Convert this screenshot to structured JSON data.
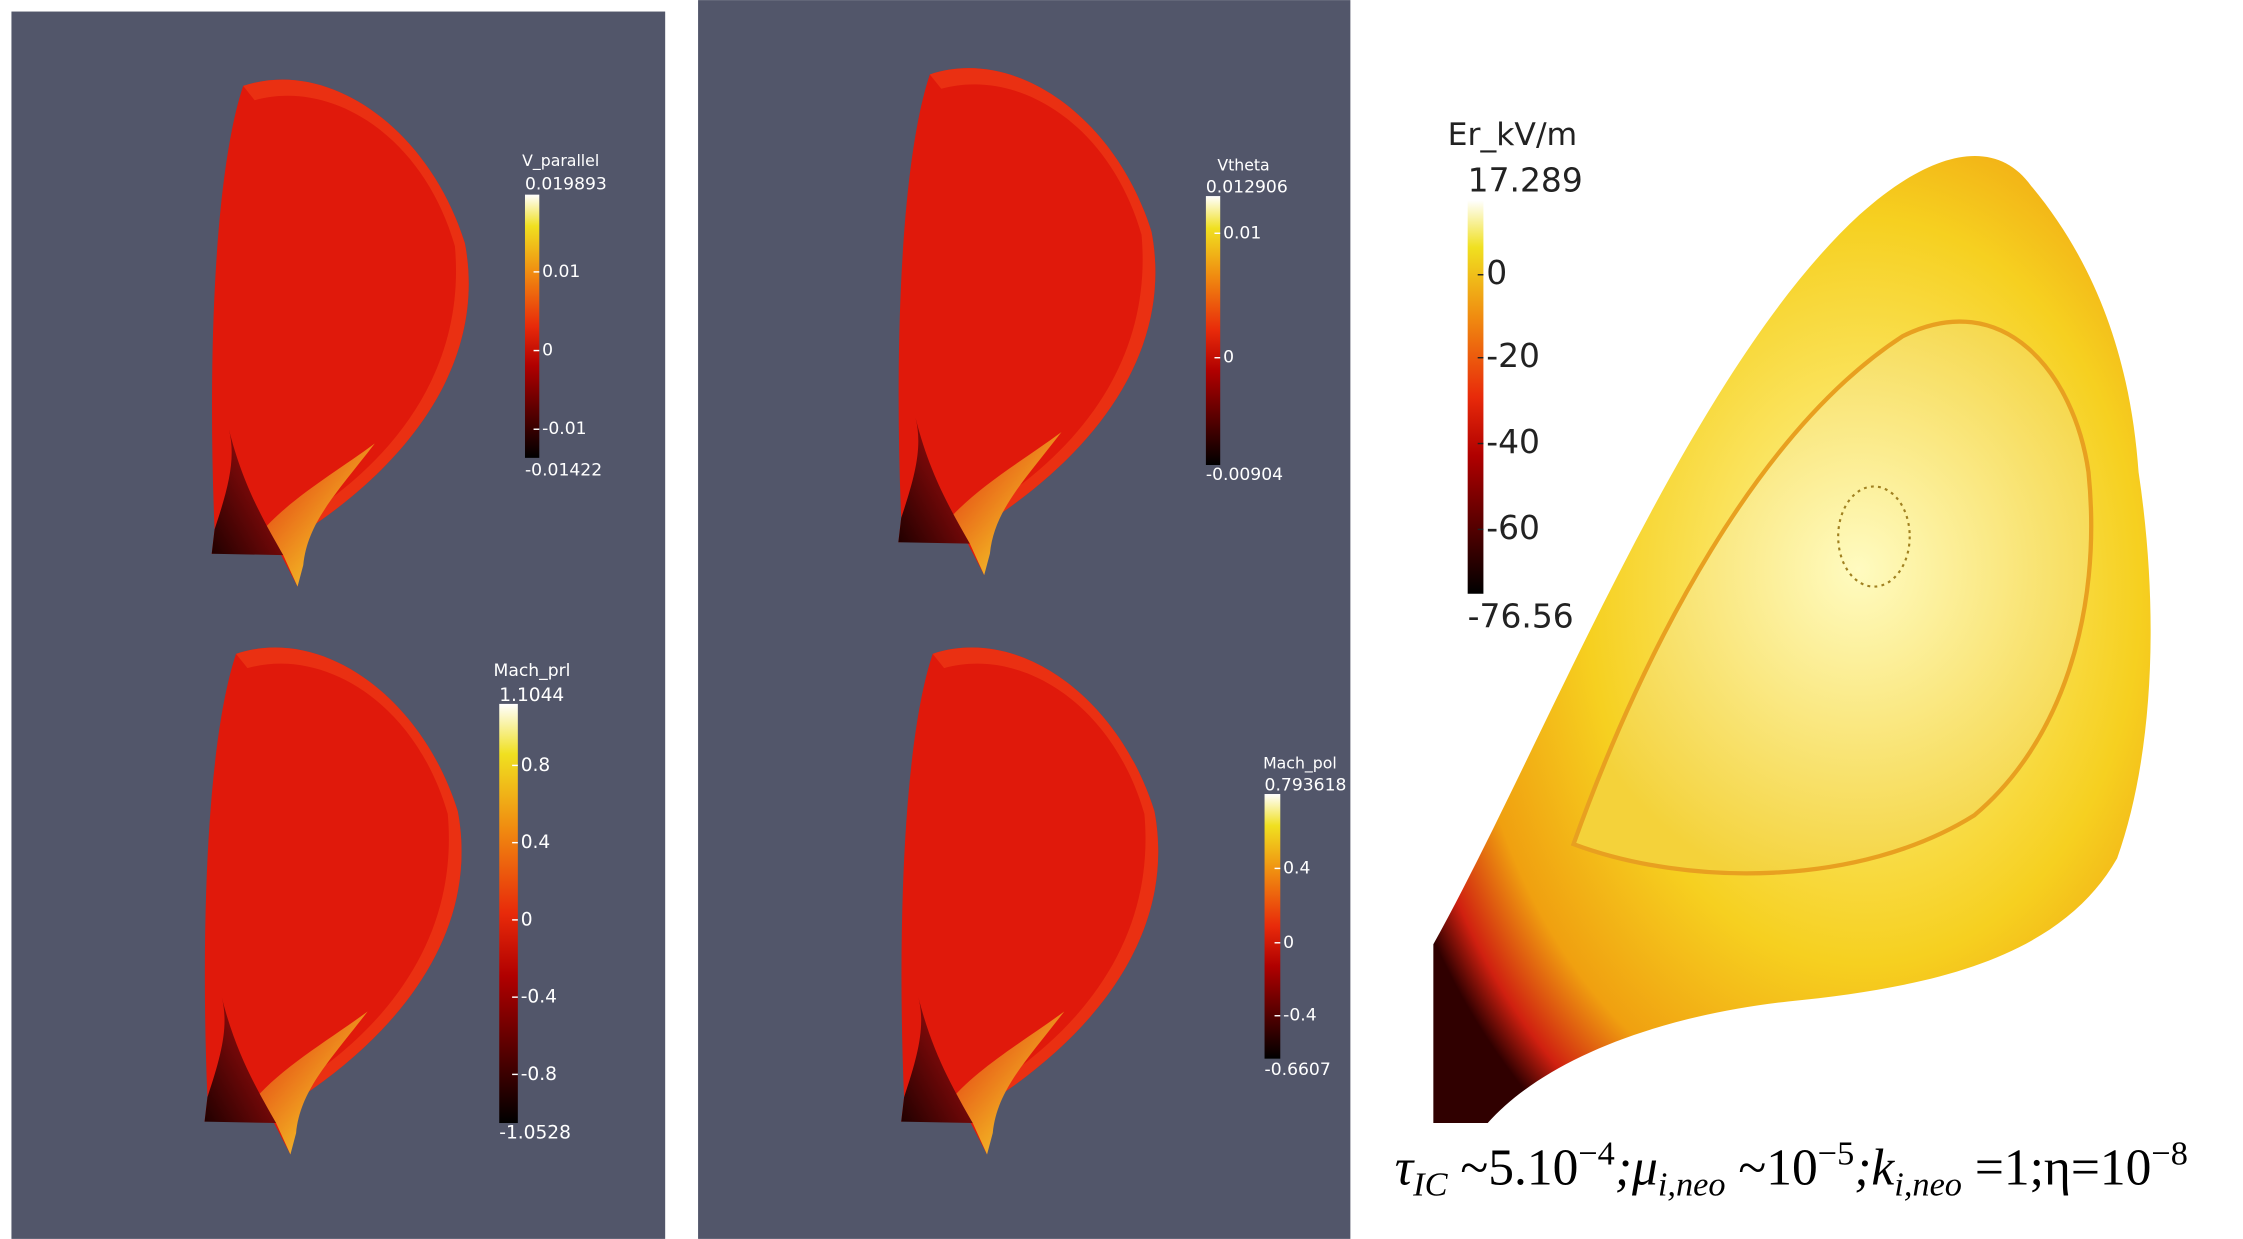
{
  "panels": [
    {
      "title": "V_parallel",
      "max": "0.019893",
      "ticks": [
        "0.01",
        "0",
        "-0.01"
      ],
      "min": "-0.01422"
    },
    {
      "title": "Mach_prl",
      "max": "1.1044",
      "ticks": [
        "0.8",
        "0.4",
        "0",
        "-0.4",
        "-0.8"
      ],
      "min": "-1.0528"
    },
    {
      "title": "Vtheta",
      "max": "0.012906",
      "ticks": [
        "0.01",
        "0"
      ],
      "min": "-0.00904"
    },
    {
      "title": "Mach_pol",
      "max": "0.793618",
      "ticks": [
        "0.4",
        "0",
        "-0.4"
      ],
      "min": "-0.6607"
    },
    {
      "title": "Er_kV/m",
      "max": "17.289",
      "ticks": [
        "0",
        "-20",
        "-40",
        "-60"
      ],
      "min": "-76.56"
    }
  ],
  "caption": [
    {
      "text": "τ",
      "style": "normal"
    },
    {
      "text": "IC",
      "style": "sub"
    },
    {
      "text": " ~5.10",
      "style": "normal"
    },
    {
      "text": "−4",
      "style": "sup"
    },
    {
      "text": ";μ",
      "style": "normal"
    },
    {
      "text": "i,neo",
      "style": "sub"
    },
    {
      "text": " ~10",
      "style": "normal"
    },
    {
      "text": "−5",
      "style": "sup"
    },
    {
      "text": ";k",
      "style": "normal"
    },
    {
      "text": "i,neo",
      "style": "sub"
    },
    {
      "text": " =1;η=10",
      "style": "normal"
    },
    {
      "text": "−8",
      "style": "sup"
    }
  ]
}
